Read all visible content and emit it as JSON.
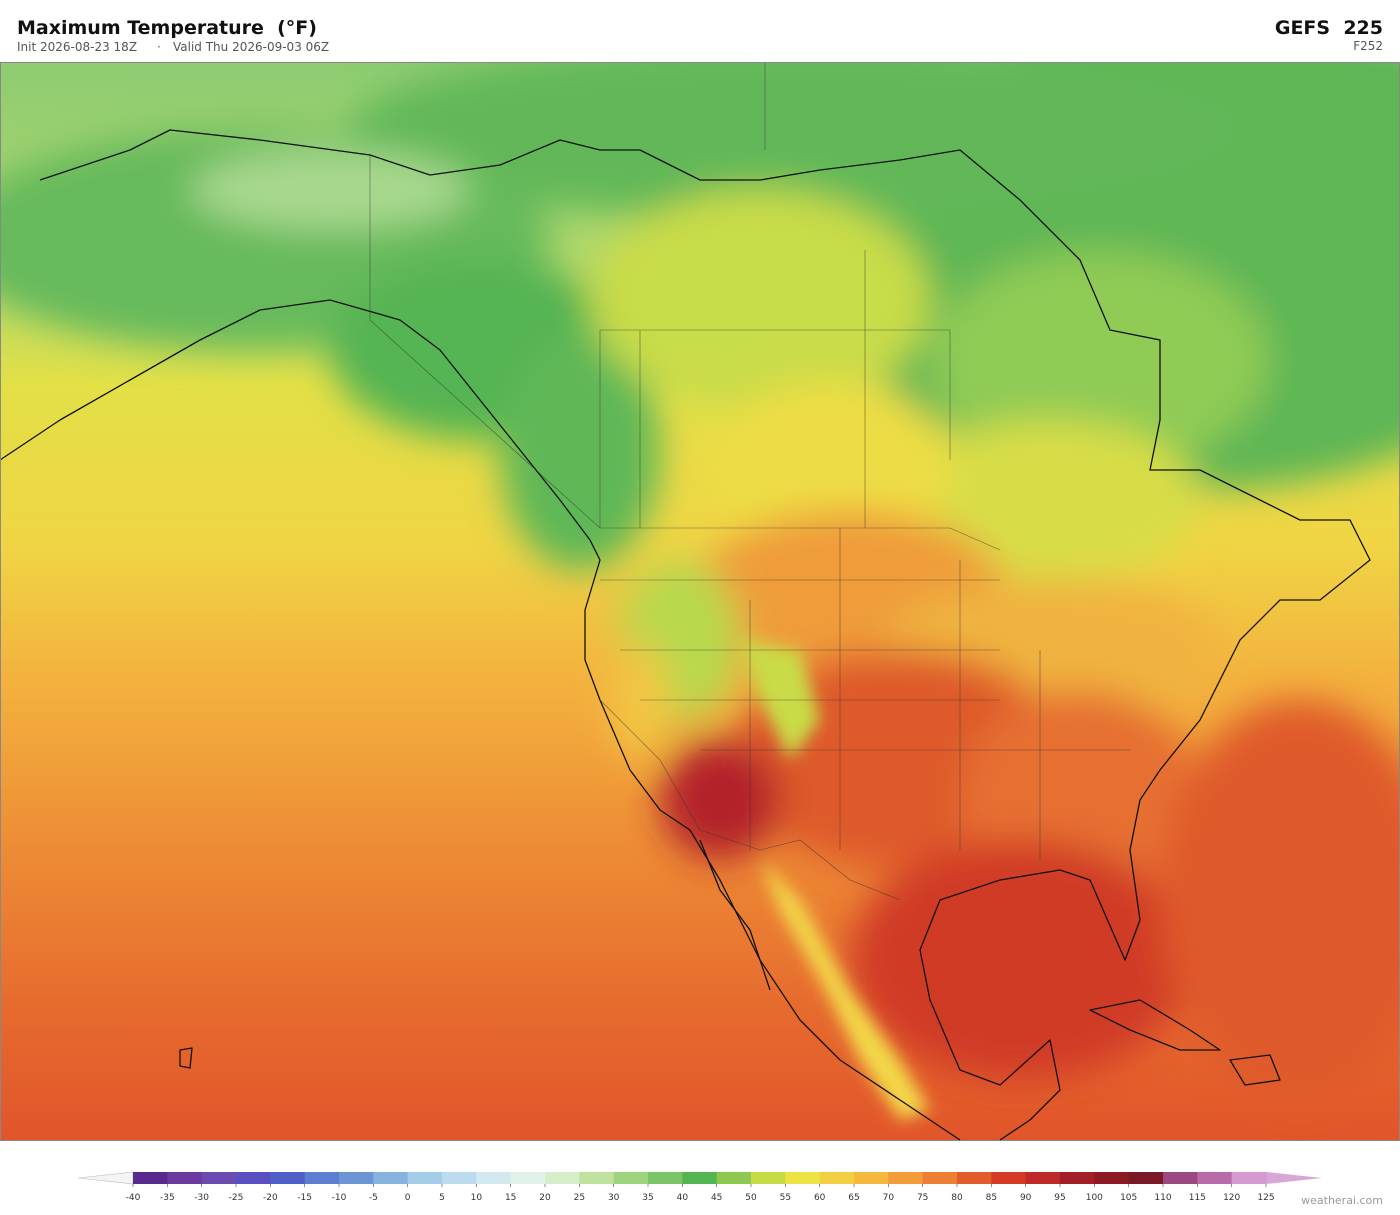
{
  "header": {
    "title": "Maximum Temperature  (°F)",
    "init": "Init 2026-08-23 18Z",
    "separator": "·",
    "valid": "Valid Thu 2026-09-03 06Z",
    "model": "GEFS  225",
    "forecast_hour": "F252"
  },
  "colorbar": {
    "ticks": [
      -40,
      -35,
      -30,
      -25,
      -20,
      -15,
      -10,
      -5,
      0,
      5,
      10,
      15,
      20,
      25,
      30,
      35,
      40,
      45,
      50,
      55,
      60,
      65,
      70,
      75,
      80,
      85,
      90,
      95,
      100,
      105,
      110,
      115,
      120,
      125
    ],
    "colors": [
      "#58298f",
      "#6b3aa0",
      "#6a4cb0",
      "#5a4fc0",
      "#4f5fc8",
      "#5d7dd0",
      "#6b95d5",
      "#86b3de",
      "#a3cde8",
      "#bcdcee",
      "#d3e9f0",
      "#e3f2e8",
      "#d7eecb",
      "#bfe29f",
      "#9fd47f",
      "#7ac667",
      "#54b452",
      "#8dc94e",
      "#c7db47",
      "#ece345",
      "#f3cf44",
      "#f4b83f",
      "#f29d3a",
      "#ec7f33",
      "#e25c2b",
      "#d43b27",
      "#bd2a27",
      "#a31f27",
      "#8b1a22",
      "#7a1825",
      "#9b4780",
      "#b96aa8",
      "#d59ad0"
    ],
    "under_color": "#f4f4f4",
    "over_color": "#d9a7d6"
  },
  "credit": "weatherai.com"
}
